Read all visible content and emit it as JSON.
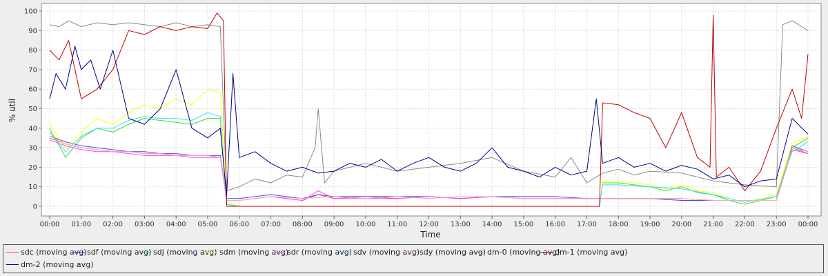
{
  "chart_data": {
    "type": "line",
    "title": "",
    "xlabel": "Time",
    "ylabel": "% util",
    "ylim": [
      0,
      100
    ],
    "yticks": [
      "0",
      "10",
      "20",
      "30",
      "40",
      "50",
      "60",
      "70",
      "80",
      "90",
      "100"
    ],
    "xticks": [
      "00:00",
      "01:00",
      "02:00",
      "03:00",
      "04:00",
      "05:00",
      "06:00",
      "07:00",
      "08:00",
      "09:00",
      "10:00",
      "11:00",
      "12:00",
      "13:00",
      "14:00",
      "15:00",
      "16:00",
      "17:00",
      "18:00",
      "19:00",
      "20:00",
      "21:00",
      "22:00",
      "23:00",
      "00:00"
    ],
    "x_unit": "hours since 00:00",
    "grid": true,
    "legend_position": "bottom",
    "series": [
      {
        "name": "sdc (moving avg)",
        "color": "#ff5555",
        "x": [
          0,
          0.5,
          1,
          1.5,
          2,
          2.5,
          3,
          3.5,
          4,
          4.5,
          5,
          5.4,
          5.6,
          6,
          6.5,
          7,
          7.5,
          8,
          8.5,
          9,
          10,
          11,
          12,
          13,
          14,
          15,
          16,
          17,
          17.5,
          18,
          19,
          20,
          21,
          22,
          23,
          23.5,
          24
        ],
        "y": [
          35,
          32,
          30,
          29,
          28,
          28,
          27,
          27,
          26,
          26,
          26,
          25,
          3,
          3,
          4,
          5,
          4,
          3,
          6,
          4,
          5,
          4,
          5,
          4,
          5,
          4,
          4,
          4,
          4,
          4,
          4,
          4,
          3,
          3,
          3,
          30,
          27
        ]
      },
      {
        "name": "sdf (moving avg)",
        "color": "#4444ff",
        "x": [
          0,
          0.5,
          1,
          1.5,
          2,
          2.5,
          3,
          3.5,
          4,
          4.5,
          5,
          5.4,
          5.6,
          6,
          6.5,
          7,
          7.5,
          8,
          8.5,
          9,
          10,
          11,
          12,
          13,
          14,
          15,
          16,
          17,
          17.5,
          18,
          19,
          20,
          21,
          22,
          23,
          23.5,
          24
        ],
        "y": [
          36,
          33,
          31,
          30,
          29,
          28,
          28,
          27,
          27,
          26,
          26,
          26,
          4,
          4,
          5,
          6,
          5,
          4,
          6,
          5,
          5,
          5,
          5,
          4,
          5,
          5,
          5,
          4,
          4,
          4,
          4,
          3,
          3,
          3,
          3,
          31,
          28
        ]
      },
      {
        "name": "sdj (moving avg)",
        "color": "#33dd33",
        "x": [
          0,
          0.5,
          1,
          1.5,
          2,
          2.5,
          3,
          3.5,
          4,
          4.5,
          5,
          5.4,
          5.6,
          6,
          7,
          8,
          9,
          10,
          11,
          12,
          13,
          14,
          15,
          16,
          17,
          17.4,
          17.5,
          18,
          19,
          19.5,
          20,
          20.5,
          21,
          21.5,
          22,
          23,
          23.5,
          24
        ],
        "y": [
          40,
          25,
          35,
          40,
          38,
          42,
          45,
          44,
          43,
          42,
          45,
          45,
          1,
          0,
          0,
          0,
          0,
          0,
          0,
          0,
          0,
          0,
          0,
          0,
          0,
          0,
          12,
          12,
          10,
          8,
          10,
          7,
          6,
          3,
          1,
          5,
          30,
          35
        ]
      },
      {
        "name": "sdm (moving avg)",
        "color": "#ffff00",
        "x": [
          0,
          0.5,
          1,
          1.5,
          2,
          2.5,
          3,
          3.5,
          4,
          4.5,
          5,
          5.4,
          5.6,
          6,
          7,
          8,
          9,
          10,
          11,
          12,
          13,
          14,
          15,
          16,
          17,
          17.4,
          17.5,
          18,
          19,
          19.5,
          20,
          20.5,
          21,
          21.5,
          22,
          23,
          23.5,
          24
        ],
        "y": [
          42,
          30,
          38,
          45,
          42,
          48,
          52,
          50,
          55,
          52,
          60,
          58,
          2,
          0,
          0,
          0,
          0,
          0,
          0,
          0,
          0,
          0,
          0,
          0,
          0,
          0,
          13,
          13,
          11,
          9,
          11,
          8,
          7,
          4,
          2,
          6,
          32,
          36
        ]
      },
      {
        "name": "sdr (moving avg)",
        "color": "#ff44ff",
        "x": [
          0,
          0.5,
          1,
          1.5,
          2,
          2.5,
          3,
          3.5,
          4,
          4.5,
          5,
          5.4,
          5.6,
          6,
          6.5,
          7,
          7.5,
          8,
          8.5,
          9,
          10,
          11,
          12,
          13,
          14,
          15,
          16,
          17,
          17.5,
          18,
          19,
          20,
          21,
          22,
          23,
          23.5,
          24
        ],
        "y": [
          34,
          31,
          29,
          28,
          28,
          27,
          26,
          26,
          26,
          25,
          25,
          25,
          3,
          3,
          4,
          5,
          4,
          3,
          8,
          4,
          4,
          4,
          5,
          4,
          5,
          4,
          4,
          4,
          4,
          4,
          4,
          4,
          3,
          3,
          3,
          29,
          27
        ]
      },
      {
        "name": "sdv (moving avg)",
        "color": "#33ddff",
        "x": [
          0,
          0.5,
          1,
          1.5,
          2,
          2.5,
          3,
          3.5,
          4,
          4.5,
          5,
          5.4,
          5.6,
          6,
          7,
          8,
          9,
          10,
          11,
          12,
          13,
          14,
          15,
          16,
          17,
          17.4,
          17.5,
          18,
          19,
          20,
          21,
          22,
          23,
          23.5,
          24
        ],
        "y": [
          38,
          28,
          36,
          40,
          40,
          44,
          46,
          45,
          45,
          44,
          48,
          46,
          1,
          0,
          0,
          0,
          0,
          0,
          0,
          0,
          0,
          0,
          0,
          0,
          0,
          0,
          11,
          11,
          10,
          9,
          6,
          2,
          5,
          28,
          33
        ]
      },
      {
        "name": "sdy (moving avg)",
        "color": "#ffaaaa",
        "x": [
          0,
          0.5,
          1,
          1.5,
          2,
          2.5,
          3,
          3.5,
          4,
          4.5,
          5,
          5.4,
          5.6,
          6,
          7,
          8,
          9,
          10,
          11,
          12,
          13,
          14,
          15,
          16,
          17,
          17.5,
          18,
          19,
          20,
          21,
          22,
          23,
          23.5,
          24
        ],
        "y": [
          36,
          32,
          30,
          29,
          28,
          28,
          27,
          27,
          26,
          26,
          26,
          25,
          3,
          3,
          5,
          4,
          5,
          4,
          5,
          4,
          5,
          5,
          4,
          4,
          4,
          4,
          4,
          4,
          4,
          3,
          3,
          3,
          30,
          28
        ]
      },
      {
        "name": "dm-0 (moving avg)",
        "color": "#888888",
        "x": [
          0,
          0.3,
          0.6,
          1,
          1.5,
          2,
          2.5,
          3,
          3.5,
          4,
          4.5,
          5,
          5.4,
          5.6,
          6,
          6.5,
          7,
          7.5,
          8,
          8.4,
          8.5,
          8.7,
          9,
          10,
          11,
          12,
          13,
          14,
          15,
          16,
          16.5,
          17,
          17.5,
          18,
          18.5,
          19,
          20,
          21,
          22,
          23,
          23.2,
          23.5,
          24
        ],
        "y": [
          93,
          92,
          95,
          92,
          94,
          93,
          94,
          93,
          92,
          94,
          92,
          93,
          92,
          8,
          10,
          14,
          12,
          16,
          15,
          30,
          50,
          12,
          18,
          22,
          18,
          20,
          22,
          25,
          18,
          15,
          25,
          12,
          17,
          19,
          16,
          18,
          17,
          13,
          11,
          10,
          93,
          95,
          90
        ]
      },
      {
        "name": "dm-1 (moving avg)",
        "color": "#bb0000",
        "x": [
          0,
          0.3,
          0.6,
          1,
          1.5,
          2,
          2.5,
          3,
          3.5,
          4,
          4.5,
          5,
          5.3,
          5.5,
          5.6,
          6,
          7,
          8,
          9,
          10,
          11,
          12,
          13,
          14,
          15,
          16,
          17,
          17.4,
          17.5,
          18,
          18.5,
          19,
          19.5,
          20,
          20.5,
          20.9,
          21,
          21.1,
          21.5,
          22,
          22.5,
          23,
          23.5,
          23.8,
          24
        ],
        "y": [
          80,
          75,
          85,
          55,
          60,
          70,
          90,
          88,
          92,
          90,
          92,
          91,
          99,
          95,
          0,
          0,
          0,
          0,
          0,
          0,
          0,
          0,
          0,
          0,
          0,
          0,
          0,
          0,
          53,
          52,
          48,
          45,
          30,
          48,
          25,
          20,
          98,
          15,
          20,
          8,
          18,
          40,
          60,
          45,
          78
        ]
      },
      {
        "name": "dm-2 (moving avg)",
        "color": "#000088",
        "x": [
          0,
          0.2,
          0.5,
          0.8,
          1,
          1.3,
          1.6,
          2,
          2.5,
          3,
          3.5,
          4,
          4.5,
          5,
          5.4,
          5.6,
          5.8,
          6,
          6.5,
          7,
          7.5,
          8,
          8.5,
          9,
          9.5,
          10,
          10.5,
          11,
          11.5,
          12,
          12.5,
          13,
          13.5,
          14,
          14.5,
          15,
          15.5,
          16,
          16.5,
          17,
          17.3,
          17.5,
          18,
          18.5,
          19,
          19.5,
          20,
          20.5,
          21,
          21.5,
          22,
          22.5,
          23,
          23.5,
          24
        ],
        "y": [
          55,
          68,
          60,
          82,
          70,
          75,
          60,
          80,
          45,
          42,
          50,
          70,
          40,
          35,
          40,
          5,
          68,
          25,
          28,
          22,
          18,
          20,
          17,
          18,
          22,
          20,
          24,
          18,
          22,
          25,
          20,
          18,
          22,
          30,
          20,
          18,
          15,
          20,
          16,
          18,
          55,
          22,
          25,
          20,
          22,
          18,
          21,
          19,
          14,
          16,
          10,
          13,
          14,
          45,
          37
        ]
      }
    ]
  }
}
